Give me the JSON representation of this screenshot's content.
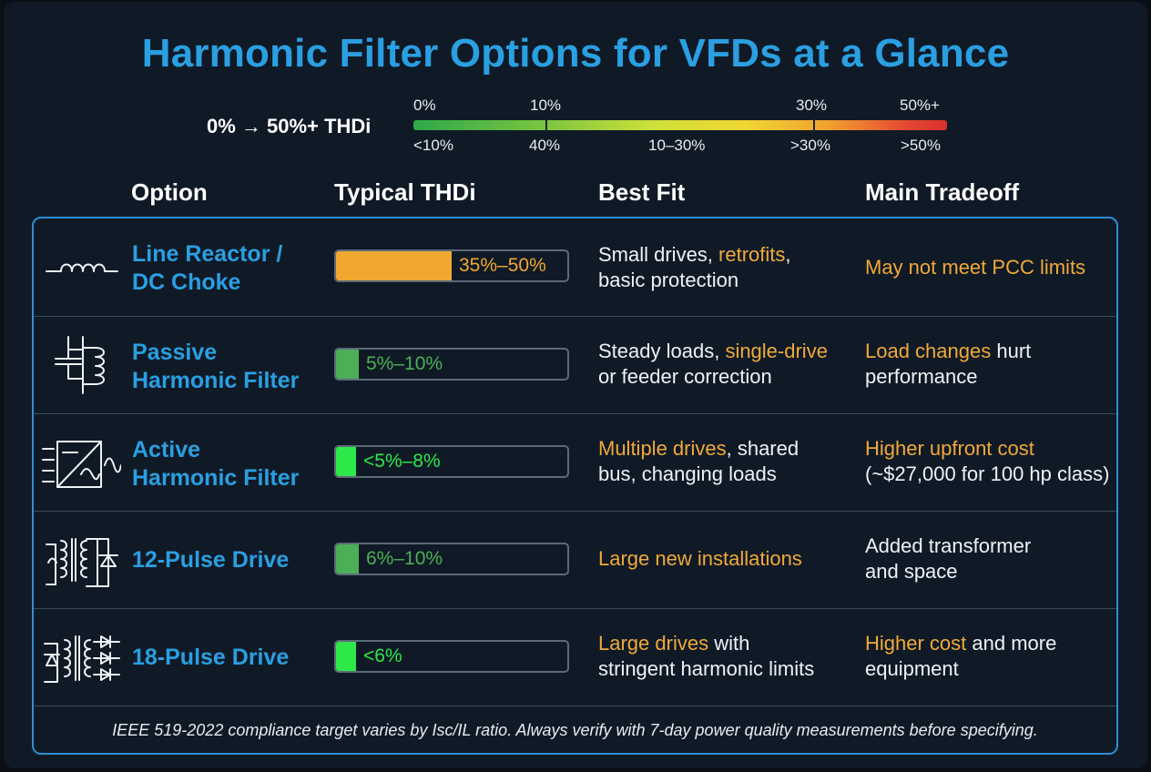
{
  "title": "Harmonic Filter Options for VFDs at a Glance",
  "scale": {
    "caption": "0% → 50%+ THDi",
    "top_labels": [
      "0%",
      "10%",
      "30%",
      "50%+"
    ],
    "bottom_labels": [
      "<10%",
      "40%",
      "10–30%",
      ">30%",
      ">50%"
    ]
  },
  "columns": [
    "Option",
    "Typical THDi",
    "Best Fit",
    "Main Tradeoff"
  ],
  "colors": {
    "accent_blue": "#2a9fe2",
    "highlight_orange": "#f0a93a",
    "bar_orange": "#f0a830",
    "bar_green": "#4caf57",
    "bar_bright_green": "#2ee84a"
  },
  "rows": [
    {
      "icon": "inductor-coil-icon",
      "name_lines": [
        "Line Reactor /",
        "DC Choke"
      ],
      "thdi_label": "35%–50%",
      "thdi_max_percent": 50,
      "best_fit": [
        [
          {
            "text": "Small drives, ",
            "hl": false
          },
          {
            "text": "retrofits",
            "hl": true
          },
          {
            "text": ",",
            "hl": false
          }
        ],
        [
          {
            "text": "basic protection",
            "hl": false
          }
        ]
      ],
      "tradeoff": [
        [
          {
            "text": "May not meet PCC limits",
            "hl": true
          }
        ]
      ]
    },
    {
      "icon": "lc-filter-icon",
      "name_lines": [
        "Passive",
        "Harmonic Filter"
      ],
      "thdi_label": "5%–10%",
      "thdi_max_percent": 10,
      "best_fit": [
        [
          {
            "text": "Steady loads, ",
            "hl": false
          },
          {
            "text": "single-drive",
            "hl": true
          }
        ],
        [
          {
            "text": "or feeder correction",
            "hl": false
          }
        ]
      ],
      "tradeoff": [
        [
          {
            "text": "Load changes",
            "hl": true
          },
          {
            "text": " hurt",
            "hl": false
          }
        ],
        [
          {
            "text": "performance",
            "hl": false
          }
        ]
      ]
    },
    {
      "icon": "active-filter-icon",
      "name_lines": [
        "Active",
        "Harmonic Filter"
      ],
      "thdi_label": "<5%–8%",
      "thdi_max_percent": 8,
      "best_fit": [
        [
          {
            "text": "Multiple drives",
            "hl": true
          },
          {
            "text": ", shared",
            "hl": false
          }
        ],
        [
          {
            "text": "bus, changing loads",
            "hl": false
          }
        ]
      ],
      "tradeoff": [
        [
          {
            "text": "Higher upfront cost",
            "hl": true
          }
        ],
        [
          {
            "text": "(~$27,000 for 100 hp class)",
            "hl": false
          }
        ]
      ]
    },
    {
      "icon": "twelve-pulse-transformer-icon",
      "name_lines": [
        "12-Pulse Drive"
      ],
      "thdi_label": "6%–10%",
      "thdi_max_percent": 10,
      "best_fit": [
        [
          {
            "text": "Large new installations",
            "hl": true
          }
        ]
      ],
      "tradeoff": [
        [
          {
            "text": "Added transformer",
            "hl": false
          }
        ],
        [
          {
            "text": "and space",
            "hl": false
          }
        ]
      ]
    },
    {
      "icon": "eighteen-pulse-rectifier-icon",
      "name_lines": [
        "18-Pulse Drive"
      ],
      "thdi_label": "<6%",
      "thdi_max_percent": 6,
      "best_fit": [
        [
          {
            "text": "Large drives",
            "hl": true
          },
          {
            "text": " with",
            "hl": false
          }
        ],
        [
          {
            "text": "stringent harmonic limits",
            "hl": false
          }
        ]
      ],
      "tradeoff": [
        [
          {
            "text": "Higher cost",
            "hl": true
          },
          {
            "text": " and more",
            "hl": false
          }
        ],
        [
          {
            "text": "equipment",
            "hl": false
          }
        ]
      ]
    }
  ],
  "footer": "IEEE 519-2022 compliance target varies by Isc/IL ratio. Always verify with 7-day power quality measurements before specifying."
}
